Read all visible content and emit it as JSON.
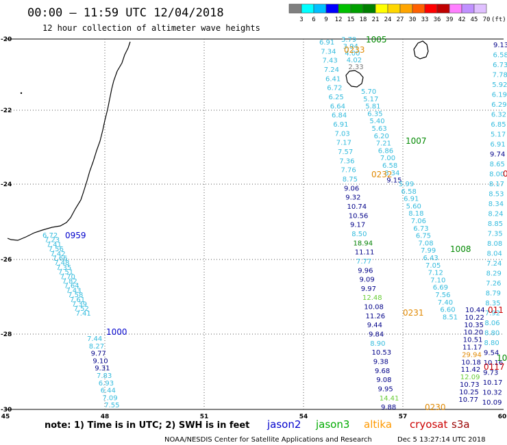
{
  "header": {
    "title": "00:00  –  11:59 UTC 12/04/2018",
    "subtitle": "12 hour collection of altimeter wave heights"
  },
  "colorbar": {
    "unit": "(ft)",
    "ticks": [
      "3",
      "6",
      "9",
      "12",
      "15",
      "18",
      "21",
      "24",
      "27",
      "30",
      "33",
      "36",
      "39",
      "42",
      "45",
      "70"
    ],
    "colors": [
      "#7f7f7f",
      "#00ffff",
      "#00bfff",
      "#0000ff",
      "#00c000",
      "#00a000",
      "#008000",
      "#ffff00",
      "#ffd700",
      "#ffa500",
      "#ff6000",
      "#ff0000",
      "#c00000",
      "#ff80ff",
      "#c090ff",
      "#e0c0ff"
    ]
  },
  "map": {
    "lon_range": [
      45,
      60
    ],
    "lat_range": [
      -30,
      -20
    ],
    "x_ticks": [
      "45",
      "48",
      "51",
      "54",
      "57",
      "60"
    ],
    "y_ticks": [
      "-20",
      "-22",
      "-24",
      "-26",
      "-28",
      "-30"
    ]
  },
  "passes": [
    {
      "satellite": "jason2",
      "time_label": "0959",
      "time_color": "#0000cc",
      "obs": [
        {
          "v": "6.72",
          "c": "#33bbdd"
        },
        {
          "v": "7.23",
          "c": "#33bbdd"
        },
        {
          "v": "7.41",
          "c": "#33bbdd"
        },
        {
          "v": "7.56",
          "c": "#33bbdd"
        },
        {
          "v": "7.42",
          "c": "#33bbdd"
        },
        {
          "v": "7.66",
          "c": "#33bbdd"
        },
        {
          "v": "7.48",
          "c": "#33bbdd"
        },
        {
          "v": "7.35",
          "c": "#33bbdd"
        },
        {
          "v": "7.51",
          "c": "#33bbdd"
        },
        {
          "v": "7.70",
          "c": "#33bbdd"
        },
        {
          "v": "7.82",
          "c": "#33bbdd"
        },
        {
          "v": "7.64",
          "c": "#33bbdd"
        },
        {
          "v": "7.43",
          "c": "#33bbdd"
        },
        {
          "v": "7.58",
          "c": "#33bbdd"
        },
        {
          "v": "7.61",
          "c": "#33bbdd"
        },
        {
          "v": "7.39",
          "c": "#33bbdd"
        },
        {
          "v": "7.52",
          "c": "#33bbdd"
        },
        {
          "v": "7.41",
          "c": "#33bbdd"
        }
      ]
    },
    {
      "satellite": "jason2",
      "time_label": "1000",
      "time_color": "#0000cc",
      "obs": [
        {
          "v": "7.44",
          "c": "#33bbdd"
        },
        {
          "v": "8.27",
          "c": "#33bbdd"
        },
        {
          "v": "9.77",
          "c": "#000088"
        },
        {
          "v": "9.10",
          "c": "#000088"
        },
        {
          "v": "9.31",
          "c": "#000088"
        },
        {
          "v": "7.83",
          "c": "#33bbdd"
        },
        {
          "v": "6.93",
          "c": "#33bbdd"
        },
        {
          "v": "6.44",
          "c": "#33bbdd"
        },
        {
          "v": "7.09",
          "c": "#33bbdd"
        },
        {
          "v": "7.55",
          "c": "#33bbdd"
        }
      ]
    },
    {
      "satellite": "jason3",
      "time_label": "1005",
      "time_color": "#008800",
      "obs": [
        {
          "v": "3.79",
          "c": "#33bbdd"
        },
        {
          "v": "3.94",
          "c": "#33bbdd"
        },
        {
          "v": "4.00",
          "c": "#33bbdd"
        },
        {
          "v": "4.02",
          "c": "#33bbdd"
        },
        {
          "v": "2.33",
          "c": "#777777"
        }
      ]
    },
    {
      "satellite": "altika",
      "time_label": "0233",
      "time_color": "#e08800",
      "obs": []
    },
    {
      "satellite": "jason2",
      "time_label": "",
      "time_color": "#0000cc",
      "obs": [
        {
          "v": "6.91",
          "c": "#33bbdd"
        },
        {
          "v": "7.34",
          "c": "#33bbdd"
        },
        {
          "v": "7.43",
          "c": "#33bbdd"
        },
        {
          "v": "7.24",
          "c": "#33bbdd"
        },
        {
          "v": "6.41",
          "c": "#33bbdd"
        },
        {
          "v": "6.72",
          "c": "#33bbdd"
        },
        {
          "v": "6.25",
          "c": "#33bbdd"
        },
        {
          "v": "6.64",
          "c": "#33bbdd"
        },
        {
          "v": "6.84",
          "c": "#33bbdd"
        },
        {
          "v": "6.91",
          "c": "#33bbdd"
        },
        {
          "v": "7.03",
          "c": "#33bbdd"
        },
        {
          "v": "7.17",
          "c": "#33bbdd"
        },
        {
          "v": "7.57",
          "c": "#33bbdd"
        },
        {
          "v": "7.36",
          "c": "#33bbdd"
        },
        {
          "v": "7.76",
          "c": "#33bbdd"
        },
        {
          "v": "8.75",
          "c": "#33bbdd"
        },
        {
          "v": "9.06",
          "c": "#000088"
        },
        {
          "v": "9.32",
          "c": "#000088"
        },
        {
          "v": "10.74",
          "c": "#000088"
        },
        {
          "v": "10.56",
          "c": "#000088"
        },
        {
          "v": "9.17",
          "c": "#000088"
        },
        {
          "v": "8.50",
          "c": "#33bbdd"
        },
        {
          "v": "18.94",
          "c": "#008000"
        },
        {
          "v": "11.11",
          "c": "#000088"
        },
        {
          "v": "7.77",
          "c": "#33bbdd"
        },
        {
          "v": "9.96",
          "c": "#000088"
        },
        {
          "v": "9.09",
          "c": "#000088"
        },
        {
          "v": "9.97",
          "c": "#000088"
        },
        {
          "v": "12.48",
          "c": "#66cc33"
        },
        {
          "v": "10.08",
          "c": "#000088"
        },
        {
          "v": "11.26",
          "c": "#000088"
        },
        {
          "v": "9.44",
          "c": "#000088"
        },
        {
          "v": "9.84",
          "c": "#000088"
        },
        {
          "v": "8.90",
          "c": "#33bbdd"
        },
        {
          "v": "10.53",
          "c": "#000088"
        },
        {
          "v": "9.38",
          "c": "#000088"
        },
        {
          "v": "9.68",
          "c": "#000088"
        },
        {
          "v": "9.08",
          "c": "#000088"
        },
        {
          "v": "9.95",
          "c": "#000088"
        },
        {
          "v": "14.41",
          "c": "#66cc33"
        },
        {
          "v": "9.88",
          "c": "#000088"
        }
      ]
    },
    {
      "satellite": "jason3",
      "time_label": "1007",
      "time_color": "#008800",
      "obs": [
        {
          "v": "5.70",
          "c": "#33bbdd"
        },
        {
          "v": "5.17",
          "c": "#33bbdd"
        },
        {
          "v": "5.81",
          "c": "#33bbdd"
        },
        {
          "v": "6.35",
          "c": "#33bbdd"
        },
        {
          "v": "5.40",
          "c": "#33bbdd"
        },
        {
          "v": "5.63",
          "c": "#33bbdd"
        },
        {
          "v": "6.20",
          "c": "#33bbdd"
        },
        {
          "v": "7.21",
          "c": "#33bbdd"
        },
        {
          "v": "6.86",
          "c": "#33bbdd"
        },
        {
          "v": "7.00",
          "c": "#33bbdd"
        },
        {
          "v": "6.58",
          "c": "#33bbdd"
        },
        {
          "v": "8.34",
          "c": "#33bbdd"
        },
        {
          "v": "9.15",
          "c": "#000088"
        }
      ]
    },
    {
      "satellite": "altika",
      "time_label": "0232",
      "time_color": "#e08800",
      "obs": [
        {
          "v": "5.99",
          "c": "#33bbdd"
        },
        {
          "v": "6.58",
          "c": "#33bbdd"
        },
        {
          "v": "6.91",
          "c": "#33bbdd"
        },
        {
          "v": "5.60",
          "c": "#33bbdd"
        },
        {
          "v": "8.18",
          "c": "#33bbdd"
        },
        {
          "v": "7.06",
          "c": "#33bbdd"
        },
        {
          "v": "6.73",
          "c": "#33bbdd"
        },
        {
          "v": "6.75",
          "c": "#33bbdd"
        },
        {
          "v": "7.08",
          "c": "#33bbdd"
        },
        {
          "v": "7.99",
          "c": "#33bbdd"
        },
        {
          "v": "6.43",
          "c": "#33bbdd"
        },
        {
          "v": "7.05",
          "c": "#33bbdd"
        },
        {
          "v": "7.12",
          "c": "#33bbdd"
        },
        {
          "v": "7.10",
          "c": "#33bbdd"
        },
        {
          "v": "6.69",
          "c": "#33bbdd"
        },
        {
          "v": "7.56",
          "c": "#33bbdd"
        },
        {
          "v": "7.40",
          "c": "#33bbdd"
        },
        {
          "v": "6.60",
          "c": "#33bbdd"
        },
        {
          "v": "8.51",
          "c": "#33bbdd"
        }
      ]
    },
    {
      "satellite": "jason3",
      "time_label": "1008",
      "time_color": "#008800",
      "obs": []
    },
    {
      "satellite": "altika",
      "time_label": "0231",
      "time_color": "#e08800",
      "obs": []
    },
    {
      "satellite": "jason2",
      "time_label": "",
      "time_color": "#0000cc",
      "obs": [
        {
          "v": "10.44",
          "c": "#000088"
        },
        {
          "v": "10.22",
          "c": "#000088"
        },
        {
          "v": "10.35",
          "c": "#000088"
        },
        {
          "v": "10.20",
          "c": "#000088"
        },
        {
          "v": "10.51",
          "c": "#000088"
        },
        {
          "v": "11.17",
          "c": "#000088"
        },
        {
          "v": "29.94",
          "c": "#e08800"
        },
        {
          "v": "10.18",
          "c": "#000088"
        },
        {
          "v": "11.42",
          "c": "#000088"
        },
        {
          "v": "12.09",
          "c": "#66cc33"
        },
        {
          "v": "10.73",
          "c": "#000088"
        },
        {
          "v": "10.25",
          "c": "#000088"
        },
        {
          "v": "10.77",
          "c": "#000088"
        }
      ]
    },
    {
      "satellite": "altika",
      "time_label": "0230",
      "time_color": "#e08800",
      "obs": []
    },
    {
      "satellite": "jason2",
      "time_label": "",
      "time_color": "#0000cc",
      "obs": [
        {
          "v": "9.13",
          "c": "#000088"
        },
        {
          "v": "6.58",
          "c": "#33bbdd"
        },
        {
          "v": "6.73",
          "c": "#33bbdd"
        },
        {
          "v": "7.78",
          "c": "#33bbdd"
        },
        {
          "v": "5.92",
          "c": "#33bbdd"
        },
        {
          "v": "6.19",
          "c": "#33bbdd"
        },
        {
          "v": "6.29",
          "c": "#33bbdd"
        },
        {
          "v": "6.32",
          "c": "#33bbdd"
        },
        {
          "v": "6.85",
          "c": "#33bbdd"
        },
        {
          "v": "5.17",
          "c": "#33bbdd"
        },
        {
          "v": "6.91",
          "c": "#33bbdd"
        },
        {
          "v": "9.74",
          "c": "#000088"
        },
        {
          "v": "8.65",
          "c": "#33bbdd"
        },
        {
          "v": "8.00",
          "c": "#33bbdd"
        },
        {
          "v": "8.17",
          "c": "#33bbdd"
        },
        {
          "v": "8.53",
          "c": "#33bbdd"
        },
        {
          "v": "8.34",
          "c": "#33bbdd"
        },
        {
          "v": "8.24",
          "c": "#33bbdd"
        },
        {
          "v": "8.85",
          "c": "#33bbdd"
        },
        {
          "v": "7.35",
          "c": "#33bbdd"
        },
        {
          "v": "8.08",
          "c": "#33bbdd"
        },
        {
          "v": "8.04",
          "c": "#33bbdd"
        },
        {
          "v": "7.24",
          "c": "#33bbdd"
        },
        {
          "v": "8.29",
          "c": "#33bbdd"
        },
        {
          "v": "7.26",
          "c": "#33bbdd"
        },
        {
          "v": "8.79",
          "c": "#33bbdd"
        },
        {
          "v": "8.35",
          "c": "#33bbdd"
        },
        {
          "v": "7.92",
          "c": "#33bbdd"
        },
        {
          "v": "8.06",
          "c": "#33bbdd"
        },
        {
          "v": "8.80",
          "c": "#33bbdd"
        },
        {
          "v": "8.80",
          "c": "#33bbdd"
        },
        {
          "v": "9.54",
          "c": "#000088"
        },
        {
          "v": "10.16",
          "c": "#000088"
        },
        {
          "v": "9.73",
          "c": "#000088"
        },
        {
          "v": "10.17",
          "c": "#000088"
        },
        {
          "v": "10.32",
          "c": "#000088"
        },
        {
          "v": "10.09",
          "c": "#000088"
        }
      ]
    },
    {
      "satellite": "cryosat",
      "time_label": "011",
      "time_color": "#cc0000",
      "obs": []
    },
    {
      "satellite": "cryosat",
      "time_label": "0117",
      "time_color": "#cc0000",
      "obs": []
    },
    {
      "satellite": "jason3",
      "time_label": "10",
      "time_color": "#008800",
      "obs": []
    },
    {
      "satellite": "cryosat",
      "time_label": "0",
      "time_color": "#cc0000",
      "obs": []
    }
  ],
  "note": "note:  1) Time is in UTC; 2) SWH is in feet",
  "legend": [
    {
      "label": "jason2",
      "color": "#0000cc"
    },
    {
      "label": "jason3",
      "color": "#00aa00"
    },
    {
      "label": "altika",
      "color": "#ff9900"
    },
    {
      "label": "cryosat",
      "color": "#cc0000"
    },
    {
      "label": "s3a",
      "color": "#990000"
    }
  ],
  "footer": {
    "credit": "NOAA/NESDIS Center for Satellite Applications and Research",
    "timestamp": "Dec  5 13:27:14 UTC 2018"
  }
}
